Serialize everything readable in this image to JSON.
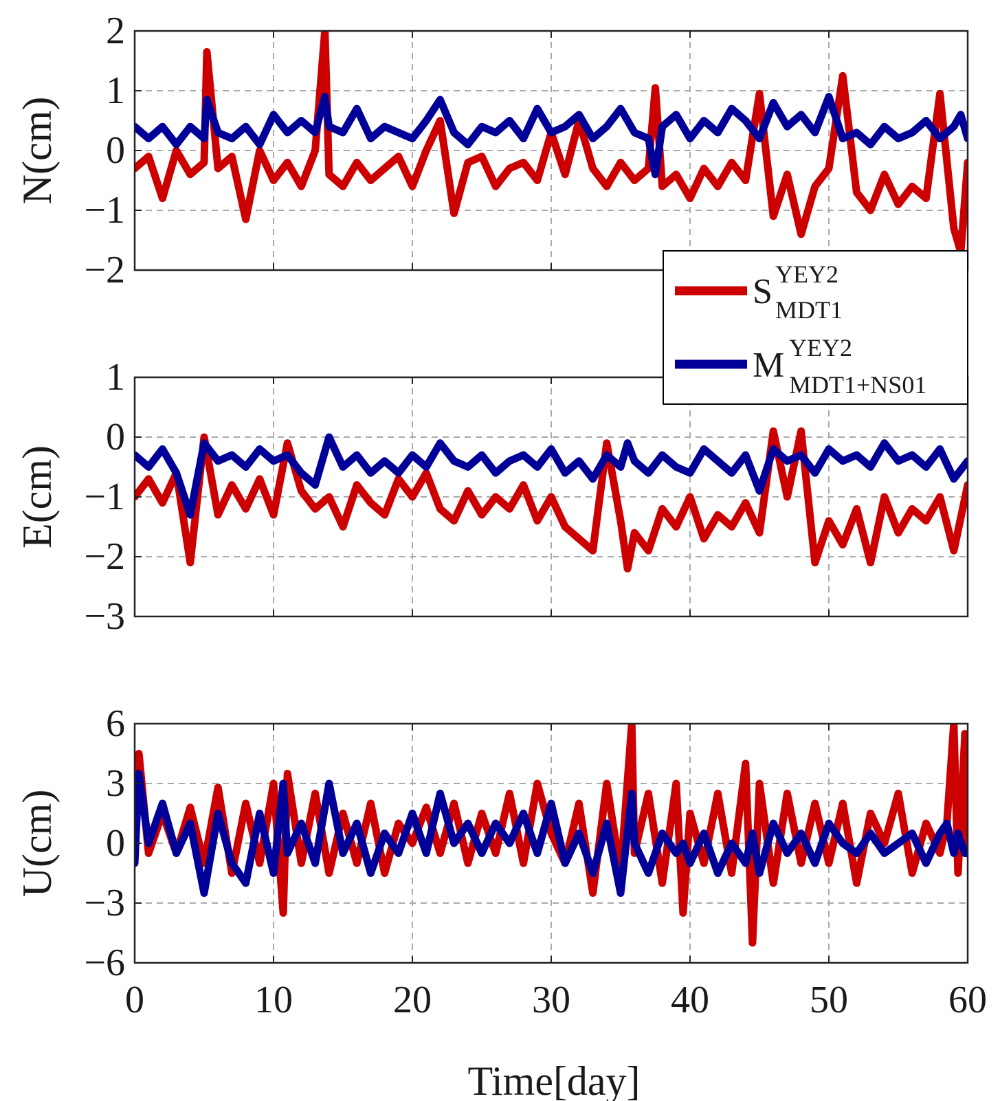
{
  "chart_data": {
    "type": "line",
    "xlabel": "Time[day]",
    "xlim": [
      0,
      60
    ],
    "xticks": [
      0,
      10,
      20,
      30,
      40,
      50,
      60
    ],
    "colors": {
      "S": "#cc0000",
      "M": "#000099"
    },
    "legend": {
      "location": "inside-right, between top and middle panel",
      "entries": [
        {
          "name": "S",
          "sup": "YEY2",
          "sub": "MDT1",
          "color": "#cc0000"
        },
        {
          "name": "M",
          "sup": "YEY2",
          "sub": "MDT1+NS01",
          "color": "#000099"
        }
      ]
    },
    "panels": [
      {
        "ylabel": "N(cm)",
        "ylim": [
          -2,
          2
        ],
        "yticks": [
          -2,
          -1,
          0,
          1,
          2
        ],
        "ytick_labels": [
          "−2",
          "−1",
          "0",
          "1",
          "2"
        ],
        "series": [
          {
            "name": "S",
            "x": [
              0,
              1,
              2,
              3,
              4,
              5,
              5.2,
              6,
              7,
              8,
              9,
              10,
              11,
              12,
              13,
              13.7,
              14,
              15,
              16,
              17,
              18,
              19,
              20,
              21,
              22,
              23,
              24,
              25,
              26,
              27,
              28,
              29,
              30,
              31,
              32,
              33,
              34,
              35,
              36,
              37,
              37.5,
              38,
              39,
              40,
              41,
              42,
              43,
              44,
              45,
              46,
              47,
              48,
              49,
              50,
              51,
              52,
              53,
              54,
              55,
              56,
              57,
              58,
              59,
              59.5,
              60
            ],
            "values": [
              -0.3,
              -0.1,
              -0.8,
              0.0,
              -0.4,
              -0.2,
              1.65,
              -0.3,
              -0.1,
              -1.15,
              0.0,
              -0.5,
              -0.2,
              -0.6,
              0.0,
              2.0,
              -0.4,
              -0.6,
              -0.2,
              -0.5,
              -0.3,
              -0.1,
              -0.6,
              0.0,
              0.5,
              -1.05,
              -0.2,
              -0.1,
              -0.6,
              -0.3,
              -0.2,
              -0.5,
              0.3,
              -0.4,
              0.5,
              -0.3,
              -0.6,
              -0.2,
              -0.5,
              -0.3,
              1.05,
              -0.6,
              -0.4,
              -0.8,
              -0.3,
              -0.6,
              -0.2,
              -0.5,
              0.95,
              -1.1,
              -0.4,
              -1.4,
              -0.6,
              -0.3,
              1.25,
              -0.7,
              -1.0,
              -0.4,
              -0.9,
              -0.6,
              -0.8,
              0.95,
              -1.3,
              -1.7,
              -0.2
            ]
          },
          {
            "name": "M",
            "x": [
              0,
              1,
              2,
              3,
              4,
              5,
              5.2,
              6,
              7,
              8,
              9,
              10,
              11,
              12,
              13,
              13.7,
              14,
              15,
              16,
              17,
              18,
              19,
              20,
              21,
              22,
              23,
              24,
              25,
              26,
              27,
              28,
              29,
              30,
              31,
              32,
              33,
              34,
              35,
              36,
              37,
              37.5,
              38,
              39,
              40,
              41,
              42,
              43,
              44,
              45,
              46,
              47,
              48,
              49,
              50,
              51,
              52,
              53,
              54,
              55,
              56,
              57,
              58,
              59,
              59.5,
              60
            ],
            "values": [
              0.4,
              0.2,
              0.4,
              0.1,
              0.4,
              0.2,
              0.85,
              0.3,
              0.2,
              0.4,
              0.1,
              0.6,
              0.3,
              0.5,
              0.3,
              0.9,
              0.4,
              0.3,
              0.7,
              0.2,
              0.4,
              0.3,
              0.2,
              0.5,
              0.85,
              0.3,
              0.1,
              0.4,
              0.3,
              0.5,
              0.2,
              0.7,
              0.3,
              0.4,
              0.6,
              0.2,
              0.4,
              0.7,
              0.3,
              0.2,
              -0.4,
              0.4,
              0.6,
              0.2,
              0.5,
              0.3,
              0.7,
              0.5,
              0.2,
              0.8,
              0.4,
              0.6,
              0.3,
              0.9,
              0.2,
              0.3,
              0.1,
              0.4,
              0.2,
              0.3,
              0.5,
              0.2,
              0.4,
              0.6,
              0.2
            ]
          }
        ]
      },
      {
        "ylabel": "E(cm)",
        "ylim": [
          -3,
          1
        ],
        "yticks": [
          -3,
          -2,
          -1,
          0,
          1
        ],
        "ytick_labels": [
          "−3",
          "−2",
          "−1",
          "0",
          "1"
        ],
        "series": [
          {
            "name": "S",
            "x": [
              0,
              1,
              2,
              3,
              4,
              5,
              6,
              7,
              8,
              9,
              10,
              11,
              12,
              13,
              14,
              15,
              16,
              17,
              18,
              19,
              20,
              21,
              22,
              23,
              24,
              25,
              26,
              27,
              28,
              29,
              30,
              31,
              32,
              33,
              34,
              35,
              35.5,
              36,
              37,
              38,
              39,
              40,
              41,
              42,
              43,
              44,
              45,
              46,
              47,
              48,
              49,
              50,
              51,
              52,
              53,
              54,
              55,
              56,
              57,
              58,
              59,
              60
            ],
            "values": [
              -1.0,
              -0.7,
              -1.1,
              -0.6,
              -2.1,
              0.0,
              -1.3,
              -0.8,
              -1.2,
              -0.7,
              -1.3,
              -0.1,
              -0.9,
              -1.2,
              -1.0,
              -1.5,
              -0.8,
              -1.1,
              -1.3,
              -0.7,
              -1.0,
              -0.6,
              -1.2,
              -1.4,
              -0.9,
              -1.3,
              -1.0,
              -1.2,
              -0.8,
              -1.4,
              -1.0,
              -1.5,
              -1.7,
              -1.9,
              -0.1,
              -1.4,
              -2.2,
              -1.6,
              -1.9,
              -1.2,
              -1.5,
              -1.0,
              -1.7,
              -1.3,
              -1.5,
              -1.1,
              -1.6,
              0.1,
              -1.0,
              0.1,
              -2.1,
              -1.4,
              -1.8,
              -1.2,
              -2.1,
              -1.0,
              -1.6,
              -1.2,
              -1.4,
              -1.0,
              -1.9,
              -0.8
            ]
          },
          {
            "name": "M",
            "x": [
              0,
              1,
              2,
              3,
              4,
              5,
              6,
              7,
              8,
              9,
              10,
              11,
              12,
              13,
              14,
              15,
              16,
              17,
              18,
              19,
              20,
              21,
              22,
              23,
              24,
              25,
              26,
              27,
              28,
              29,
              30,
              31,
              32,
              33,
              34,
              35,
              35.5,
              36,
              37,
              38,
              39,
              40,
              41,
              42,
              43,
              44,
              45,
              46,
              47,
              48,
              49,
              50,
              51,
              52,
              53,
              54,
              55,
              56,
              57,
              58,
              59,
              60
            ],
            "values": [
              -0.3,
              -0.5,
              -0.2,
              -0.6,
              -1.3,
              -0.1,
              -0.4,
              -0.3,
              -0.5,
              -0.2,
              -0.4,
              -0.3,
              -0.6,
              -0.8,
              0.0,
              -0.5,
              -0.3,
              -0.6,
              -0.4,
              -0.6,
              -0.3,
              -0.5,
              -0.1,
              -0.4,
              -0.5,
              -0.3,
              -0.6,
              -0.4,
              -0.3,
              -0.5,
              -0.2,
              -0.6,
              -0.4,
              -0.7,
              -0.3,
              -0.5,
              -0.1,
              -0.4,
              -0.6,
              -0.3,
              -0.5,
              -0.6,
              -0.2,
              -0.4,
              -0.6,
              -0.3,
              -0.9,
              -0.2,
              -0.4,
              -0.3,
              -0.6,
              -0.2,
              -0.4,
              -0.3,
              -0.5,
              -0.1,
              -0.4,
              -0.3,
              -0.5,
              -0.2,
              -0.7,
              -0.4
            ]
          }
        ]
      },
      {
        "ylabel": "U(cm)",
        "ylim": [
          -6,
          6
        ],
        "yticks": [
          -6,
          -3,
          0,
          3,
          6
        ],
        "ytick_labels": [
          "−6",
          "−3",
          "0",
          "3",
          "6"
        ],
        "series": [
          {
            "name": "S",
            "x": [
              0,
              0.3,
              1,
              2,
              3,
              4,
              5,
              6,
              7,
              8,
              9,
              10,
              10.7,
              11,
              12,
              13,
              14,
              15,
              16,
              17,
              18,
              19,
              20,
              21,
              22,
              23,
              24,
              25,
              26,
              27,
              28,
              29,
              30,
              31,
              32,
              33,
              34,
              35,
              35.8,
              36,
              37,
              38,
              39,
              39.5,
              40,
              41,
              42,
              43,
              44,
              44.5,
              45,
              46,
              47,
              48,
              49,
              50,
              51,
              52,
              53,
              54,
              55,
              56,
              57,
              58,
              58.5,
              59,
              59.3,
              59.8,
              60
            ],
            "values": [
              0.5,
              4.5,
              -0.5,
              1.5,
              -0.5,
              1.8,
              -1.0,
              2.8,
              -1.5,
              2.0,
              -1.0,
              3.0,
              -3.5,
              3.5,
              -1.0,
              2.5,
              -1.5,
              1.5,
              -1.0,
              2.0,
              -1.5,
              1.0,
              0.0,
              1.8,
              -0.5,
              2.0,
              -1.0,
              1.5,
              -0.5,
              2.5,
              -1.0,
              3.0,
              0.5,
              -1.0,
              2.0,
              -2.5,
              3.0,
              -1.5,
              6.0,
              -0.5,
              2.5,
              -2.0,
              3.0,
              -3.5,
              1.5,
              -1.0,
              2.5,
              -1.5,
              4.0,
              -5.0,
              3.0,
              -2.0,
              2.5,
              -1.0,
              2.0,
              -1.0,
              2.0,
              -2.0,
              1.5,
              0.0,
              2.5,
              -1.5,
              1.0,
              -0.5,
              1.0,
              6.0,
              -1.5,
              5.5,
              0.0
            ]
          },
          {
            "name": "M",
            "x": [
              0,
              0.3,
              1,
              2,
              3,
              4,
              5,
              6,
              7,
              8,
              9,
              10,
              10.7,
              11,
              12,
              13,
              14,
              15,
              16,
              17,
              18,
              19,
              20,
              21,
              22,
              23,
              24,
              25,
              26,
              27,
              28,
              29,
              30,
              31,
              32,
              33,
              34,
              35,
              35.8,
              36,
              37,
              38,
              39,
              39.5,
              40,
              41,
              42,
              43,
              44,
              44.5,
              45,
              46,
              47,
              48,
              49,
              50,
              51,
              52,
              53,
              54,
              55,
              56,
              57,
              58,
              58.5,
              59,
              59.3,
              59.8,
              60
            ],
            "values": [
              -1.0,
              3.5,
              0.0,
              2.0,
              -0.5,
              1.0,
              -2.5,
              1.5,
              -1.0,
              -2.0,
              1.5,
              -1.5,
              3.0,
              -0.5,
              1.0,
              -1.0,
              3.0,
              -0.5,
              1.0,
              -1.5,
              0.5,
              -0.5,
              1.5,
              -0.5,
              2.5,
              0.0,
              1.0,
              -0.5,
              1.0,
              0.0,
              1.5,
              -0.5,
              2.0,
              -1.0,
              0.5,
              -1.5,
              1.0,
              -2.5,
              2.5,
              0.0,
              -1.5,
              0.5,
              -0.5,
              0.0,
              -1.0,
              0.5,
              -1.5,
              0.0,
              -1.0,
              0.5,
              -1.5,
              1.0,
              -0.5,
              0.5,
              -1.0,
              1.0,
              0.0,
              -0.5,
              0.5,
              -0.5,
              0.0,
              0.5,
              -1.0,
              0.5,
              1.0,
              -0.5,
              0.5,
              -0.5,
              -0.5
            ]
          }
        ]
      }
    ]
  }
}
